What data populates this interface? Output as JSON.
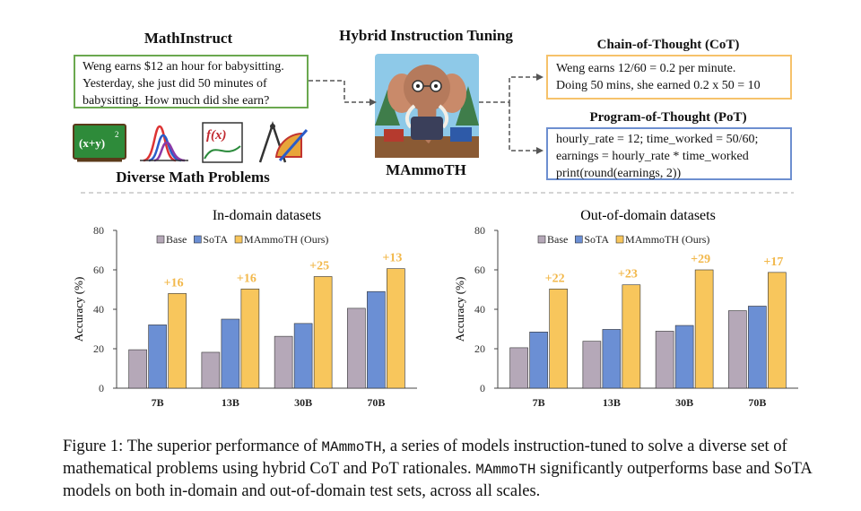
{
  "top": {
    "mathinstruct_title": "MathInstruct",
    "question_lines": [
      "Weng earns $12 an hour for babysitting.",
      "Yesterday, she just did 50 minutes of",
      "babysitting. How much did she earn?"
    ],
    "diverse_label": "Diverse Math Problems",
    "hybrid_title": "Hybrid Instruction Tuning",
    "model_name": "MAmmoTH",
    "cot_title": "Chain-of-Thought (CoT)",
    "cot_lines": [
      "Weng earns 12/60 = 0.2 per minute.",
      "Doing 50 mins, she earned 0.2 x 50 = 10"
    ],
    "pot_title": "Program-of-Thought (PoT)",
    "pot_lines": [
      "hourly_rate = 12; time_worked = 50/60;",
      "earnings = hourly_rate * time_worked",
      "print(round(earnings, 2))"
    ],
    "icon_formula": "(x+y)",
    "icon_formula_sup": "2",
    "icon_fx": "f(x)"
  },
  "colors": {
    "base": "#b5a8b8",
    "sota": "#6b8fd4",
    "mammoth": "#f8c65c",
    "delta": "#f2b84b",
    "green": "#6aa84f",
    "yellow": "#f6c26b",
    "blue": "#6d8fd0"
  },
  "chart_data": [
    {
      "type": "bar",
      "title": "In-domain datasets",
      "ylabel": "Accuracy (%)",
      "ylim": [
        0,
        80
      ],
      "yticks": [
        "0",
        "20",
        "40",
        "60",
        "80"
      ],
      "categories": [
        "7B",
        "13B",
        "30B",
        "70B"
      ],
      "series": [
        {
          "name": "Base",
          "values": [
            19.5,
            18.2,
            26.3,
            40.5
          ]
        },
        {
          "name": "SoTA",
          "values": [
            32.1,
            35.0,
            32.8,
            49.0
          ]
        },
        {
          "name": "MAmmoTH (Ours)",
          "values": [
            48.0,
            50.3,
            56.6,
            60.6
          ]
        }
      ],
      "annotations": [
        "+16",
        "+16",
        "+25",
        "+13"
      ],
      "legend": "top"
    },
    {
      "type": "bar",
      "title": "Out-of-domain datasets",
      "ylabel": "Accuracy (%)",
      "ylim": [
        0,
        80
      ],
      "yticks": [
        "0",
        "20",
        "40",
        "60",
        "80"
      ],
      "categories": [
        "7B",
        "13B",
        "30B",
        "70B"
      ],
      "series": [
        {
          "name": "Base",
          "values": [
            20.5,
            23.8,
            28.9,
            39.3
          ]
        },
        {
          "name": "SoTA",
          "values": [
            28.5,
            29.8,
            31.8,
            41.6
          ]
        },
        {
          "name": "MAmmoTH (Ours)",
          "values": [
            50.3,
            52.4,
            60.0,
            58.7
          ]
        }
      ],
      "annotations": [
        "+22",
        "+23",
        "+29",
        "+17"
      ],
      "legend": "top"
    }
  ],
  "caption": {
    "p1": "Figure 1: The superior performance of ",
    "m1": "MAmmoTH",
    "p2": ", a series of models instruction-tuned to solve a diverse set of mathematical problems using hybrid CoT and PoT rationales. ",
    "m2": "MAmmoTH",
    "p3": " significantly outperforms base and SoTA models on both in-domain and out-of-domain test sets, across all scales."
  }
}
